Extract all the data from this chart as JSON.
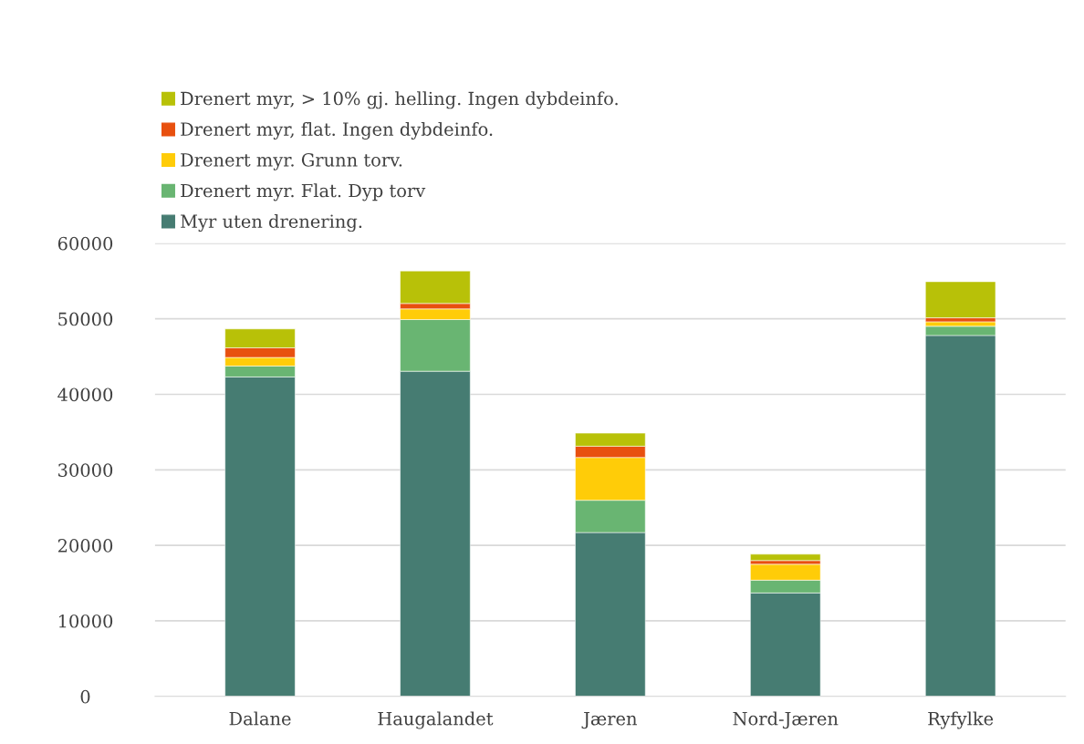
{
  "chart_data": {
    "type": "bar",
    "stacked": true,
    "categories": [
      "Dalane",
      "Haugalandet",
      "Jæren",
      "Nord-Jæren",
      "Ryfylke"
    ],
    "series": [
      {
        "name": "Myr uten drenering.",
        "color": "#467c72",
        "values": [
          42300,
          43060,
          21700,
          13700,
          47800
        ]
      },
      {
        "name": "Drenert myr. Flat. Dyp torv",
        "color": "#69b572",
        "values": [
          1450,
          6840,
          4270,
          1690,
          1210
        ]
      },
      {
        "name": "Drenert myr. Grunn torv.",
        "color": "#ffcc08",
        "values": [
          1130,
          1410,
          5670,
          2110,
          600
        ]
      },
      {
        "name": "Drenert myr, flat. Ingen dybdeinfo.",
        "color": "#e8500f",
        "values": [
          1280,
          720,
          1490,
          490,
          520
        ]
      },
      {
        "name": "Drenert myr, > 10% gj. helling. Ingen dybdeinfo.",
        "color": "#b8c108",
        "values": [
          2500,
          4310,
          1730,
          840,
          4790
        ]
      }
    ],
    "ylim": [
      0,
      60000
    ],
    "yticks": [
      0,
      10000,
      20000,
      30000,
      40000,
      50000,
      60000
    ],
    "grid": "y",
    "legend": "top left"
  }
}
